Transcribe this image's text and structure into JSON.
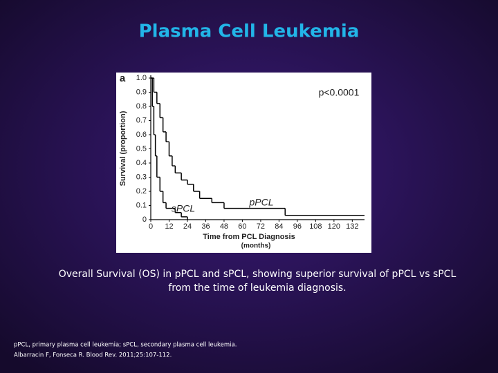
{
  "slide": {
    "title": "Plasma Cell Leukemia",
    "caption": [
      "Overall Survival (OS) in pPCL and sPCL, showing superior survival of pPCL vs sPCL",
      "from the time of leukemia diagnosis."
    ],
    "footnote": [
      "pPCL, primary plasma cell leukemia; sPCL, secondary plasma cell leukemia.",
      "Albarracin F, Fonseca R. Blood Rev. 2011;25:107-112."
    ]
  },
  "chart_data": {
    "type": "step",
    "panel_label": "a",
    "annotation": "p<0.0001",
    "x_label": "Time from PCL Diagnosis",
    "x_unit": "(months)",
    "y_label": "Survival (proportion)",
    "xlim": [
      0,
      140
    ],
    "ylim": [
      0,
      1
    ],
    "xticks": [
      0,
      12,
      24,
      36,
      48,
      60,
      72,
      84,
      96,
      108,
      120,
      132
    ],
    "yticks": [
      0,
      0.1,
      0.2,
      0.3,
      0.4,
      0.5,
      0.6,
      0.7,
      0.8,
      0.9,
      {
        "value": 1,
        "label": "1.0"
      }
    ],
    "series": [
      {
        "name": "pPCL",
        "color": "#000000",
        "x": [
          0,
          2,
          4,
          6,
          8,
          10,
          12,
          14,
          16,
          20,
          24,
          28,
          32,
          40,
          48,
          88,
          140
        ],
        "values": [
          1,
          0.9,
          0.82,
          0.72,
          0.62,
          0.55,
          0.45,
          0.38,
          0.33,
          0.28,
          0.25,
          0.2,
          0.15,
          0.12,
          0.08,
          0.03,
          0.03
        ]
      },
      {
        "name": "sPCL",
        "color": "#000000",
        "x": [
          0,
          1,
          2,
          3,
          4,
          6,
          8,
          10,
          16,
          20,
          24
        ],
        "values": [
          1,
          0.8,
          0.6,
          0.45,
          0.3,
          0.2,
          0.12,
          0.08,
          0.05,
          0.02,
          0
        ]
      }
    ]
  }
}
